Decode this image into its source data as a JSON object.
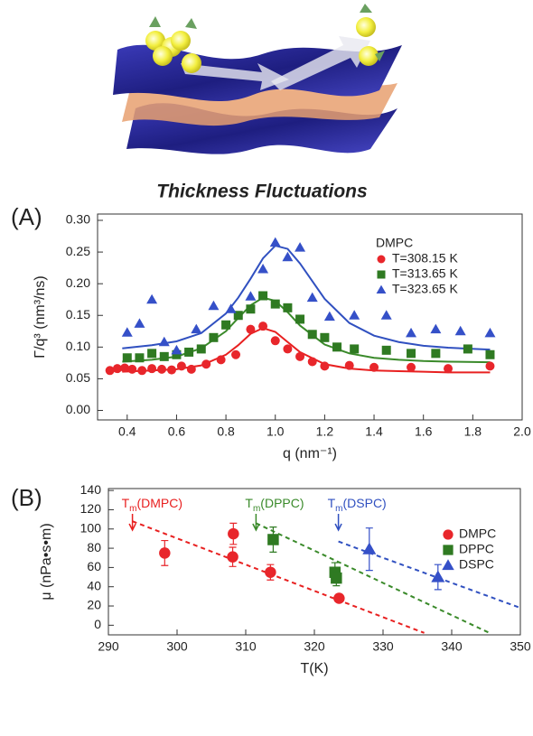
{
  "chart_data": [
    {
      "type": "scatter",
      "panel_label": "(A)",
      "title": "Thickness Fluctuations",
      "x_label": "q (nm⁻¹)",
      "y_label": "Γ/q³ (nm³/ns)",
      "xlim": [
        0.28,
        2.0
      ],
      "ylim": [
        -0.015,
        0.31
      ],
      "xticks": [
        0.4,
        0.6,
        0.8,
        {
          "value": 1,
          "label": "1.0"
        },
        1.2,
        1.4,
        1.6,
        1.8,
        {
          "value": 2,
          "label": "2.0"
        }
      ],
      "yticks": [
        {
          "value": 0,
          "label": "0.00"
        },
        0.05,
        {
          "value": 0.1,
          "label": "0.10"
        },
        0.15,
        {
          "value": 0.2,
          "label": "0.20"
        },
        0.25,
        {
          "value": 0.3,
          "label": "0.30"
        }
      ],
      "legend": "upper right",
      "legend_title": "DMPC",
      "series": [
        {
          "name": "T=308.15 K",
          "color": "#e8262b",
          "marker": "circle",
          "x": [
            0.33,
            0.36,
            0.39,
            0.42,
            0.46,
            0.5,
            0.54,
            0.58,
            0.62,
            0.66,
            0.72,
            0.78,
            0.84,
            0.9,
            0.95,
            1.0,
            1.05,
            1.1,
            1.15,
            1.2,
            1.3,
            1.4,
            1.55,
            1.7,
            1.87
          ],
          "values": [
            0.063,
            0.066,
            0.067,
            0.065,
            0.063,
            0.066,
            0.065,
            0.064,
            0.07,
            0.065,
            0.073,
            0.08,
            0.088,
            0.128,
            0.133,
            0.11,
            0.097,
            0.085,
            0.077,
            0.07,
            0.071,
            0.068,
            0.068,
            0.066,
            0.07
          ]
        },
        {
          "name": "T=313.65 K",
          "color": "#2f7a22",
          "marker": "square",
          "x": [
            0.4,
            0.45,
            0.5,
            0.55,
            0.6,
            0.65,
            0.7,
            0.75,
            0.8,
            0.85,
            0.9,
            0.95,
            1.0,
            1.05,
            1.1,
            1.15,
            1.2,
            1.25,
            1.32,
            1.45,
            1.55,
            1.65,
            1.78,
            1.87
          ],
          "values": [
            0.083,
            0.083,
            0.09,
            0.085,
            0.088,
            0.092,
            0.097,
            0.115,
            0.135,
            0.15,
            0.16,
            0.181,
            0.168,
            0.162,
            0.144,
            0.12,
            0.115,
            0.1,
            0.097,
            0.095,
            0.09,
            0.09,
            0.097,
            0.088
          ]
        },
        {
          "name": "T=323.65 K",
          "color": "#3550c8",
          "marker": "triangle",
          "x": [
            0.4,
            0.45,
            0.5,
            0.55,
            0.6,
            0.68,
            0.75,
            0.82,
            0.9,
            0.95,
            1.0,
            1.05,
            1.1,
            1.15,
            1.22,
            1.32,
            1.45,
            1.55,
            1.65,
            1.75,
            1.87
          ],
          "values": [
            0.123,
            0.137,
            0.175,
            0.108,
            0.095,
            0.128,
            0.165,
            0.16,
            0.18,
            0.223,
            0.265,
            0.242,
            0.257,
            0.178,
            0.148,
            0.15,
            0.15,
            0.122,
            0.128,
            0.125,
            0.122
          ]
        }
      ],
      "fit_lines": [
        {
          "color": "#e82020",
          "dashed": false,
          "x": [
            0.38,
            0.5,
            0.6,
            0.7,
            0.8,
            0.85,
            0.9,
            0.95,
            1.0,
            1.05,
            1.1,
            1.2,
            1.3,
            1.4,
            1.5,
            1.6,
            1.7,
            1.87
          ],
          "values": [
            0.061,
            0.063,
            0.065,
            0.071,
            0.088,
            0.103,
            0.121,
            0.13,
            0.124,
            0.108,
            0.092,
            0.073,
            0.066,
            0.063,
            0.062,
            0.061,
            0.06,
            0.06
          ]
        },
        {
          "color": "#3a8a2a",
          "dashed": false,
          "x": [
            0.38,
            0.5,
            0.6,
            0.7,
            0.8,
            0.85,
            0.9,
            0.95,
            1.0,
            1.05,
            1.1,
            1.2,
            1.3,
            1.4,
            1.5,
            1.6,
            1.7,
            1.87
          ],
          "values": [
            0.077,
            0.08,
            0.085,
            0.098,
            0.125,
            0.146,
            0.166,
            0.178,
            0.173,
            0.155,
            0.134,
            0.104,
            0.09,
            0.083,
            0.08,
            0.078,
            0.077,
            0.076
          ]
        },
        {
          "color": "#3050c0",
          "dashed": false,
          "x": [
            0.38,
            0.5,
            0.6,
            0.7,
            0.8,
            0.85,
            0.9,
            0.95,
            1.0,
            1.05,
            1.1,
            1.2,
            1.3,
            1.4,
            1.5,
            1.6,
            1.7,
            1.87
          ],
          "values": [
            0.098,
            0.103,
            0.109,
            0.122,
            0.153,
            0.178,
            0.208,
            0.24,
            0.26,
            0.255,
            0.232,
            0.176,
            0.138,
            0.118,
            0.108,
            0.102,
            0.099,
            0.096
          ]
        }
      ]
    },
    {
      "type": "scatter",
      "panel_label": "(B)",
      "x_label": "T(K)",
      "y_label": "μ (nPa•s•m)",
      "xlim": [
        290,
        350
      ],
      "ylim": [
        -10,
        142
      ],
      "xticks": [
        290,
        300,
        310,
        320,
        330,
        340,
        350
      ],
      "yticks": [
        0,
        20,
        40,
        60,
        80,
        100,
        120,
        140
      ],
      "legend": "upper right",
      "series": [
        {
          "name": "DMPC",
          "color": "#e8262b",
          "marker": "circle",
          "x": [
            298.2,
            308.1,
            308.2,
            313.6,
            323.6
          ],
          "values": [
            75,
            71,
            95,
            55,
            28
          ],
          "errors": [
            13,
            10,
            11,
            8,
            3
          ]
        },
        {
          "name": "DPPC",
          "color": "#2f7a22",
          "marker": "square",
          "x": [
            314,
            323,
            323.2
          ],
          "values": [
            89,
            55,
            49
          ],
          "errors": [
            13,
            10,
            8
          ]
        },
        {
          "name": "DSPC",
          "color": "#3550c8",
          "marker": "triangle",
          "x": [
            328,
            338
          ],
          "values": [
            79,
            50
          ],
          "errors": [
            22,
            13
          ]
        }
      ],
      "fit_lines": [
        {
          "color": "#e82020",
          "dashed": true,
          "x": [
            293.5,
            336
          ],
          "values": [
            108,
            -8
          ]
        },
        {
          "color": "#3a8a2a",
          "dashed": true,
          "x": [
            311.5,
            345.5
          ],
          "values": [
            106,
            -8
          ]
        },
        {
          "color": "#3050c0",
          "dashed": true,
          "x": [
            323.5,
            350
          ],
          "values": [
            87,
            18
          ]
        }
      ],
      "annotations": [
        {
          "parts": [
            "T",
            "m",
            "(DMPC)"
          ],
          "color": "#e82020",
          "x": 293.5
        },
        {
          "parts": [
            "T",
            "m",
            "(DPPC)"
          ],
          "color": "#3a8a2a",
          "x": 311.5
        },
        {
          "parts": [
            "T",
            "m",
            "(DSPC)"
          ],
          "color": "#3050c0",
          "x": 323.5
        }
      ]
    }
  ]
}
